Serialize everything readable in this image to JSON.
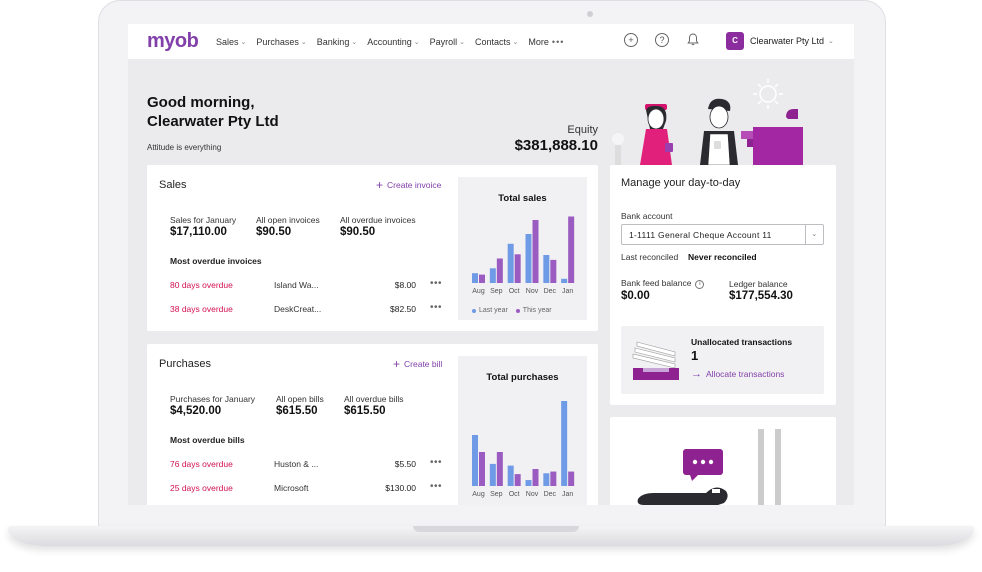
{
  "nav": {
    "logo": "myob",
    "items": [
      {
        "label": "Sales"
      },
      {
        "label": "Purchases"
      },
      {
        "label": "Banking"
      },
      {
        "label": "Accounting"
      },
      {
        "label": "Payroll"
      },
      {
        "label": "Contacts"
      },
      {
        "label": "More"
      }
    ],
    "company_initial": "C",
    "company_name": "Clearwater Pty Ltd"
  },
  "header": {
    "greeting_line1": "Good morning,",
    "greeting_line2": "Clearwater Pty Ltd",
    "tagline": "Attitude is everything",
    "equity_label": "Equity",
    "equity_value": "$381,888.10"
  },
  "sales": {
    "title": "Sales",
    "action": "Create invoice",
    "stats": [
      {
        "label": "Sales for January",
        "value": "$17,110.00"
      },
      {
        "label": "All open invoices",
        "value": "$90.50"
      },
      {
        "label": "All overdue invoices",
        "value": "$90.50"
      }
    ],
    "overdue_title": "Most overdue invoices",
    "overdue": [
      {
        "status": "80 days overdue",
        "customer": "Island Wa...",
        "amount": "$8.00"
      },
      {
        "status": "38 days overdue",
        "customer": "DeskCreat...",
        "amount": "$82.50"
      }
    ]
  },
  "purchases": {
    "title": "Purchases",
    "action": "Create bill",
    "stats": [
      {
        "label": "Purchases for January",
        "value": "$4,520.00"
      },
      {
        "label": "All open bills",
        "value": "$615.50"
      },
      {
        "label": "All overdue bills",
        "value": "$615.50"
      }
    ],
    "overdue_title": "Most overdue bills",
    "overdue": [
      {
        "status": "76 days overdue",
        "customer": "Huston & ...",
        "amount": "$5.50"
      },
      {
        "status": "25 days overdue",
        "customer": "Microsoft",
        "amount": "$130.00"
      }
    ]
  },
  "chart_data": [
    {
      "type": "bar",
      "title": "Total sales",
      "categories": [
        "Aug",
        "Sep",
        "Oct",
        "Nov",
        "Dec",
        "Jan"
      ],
      "series": [
        {
          "name": "Last year",
          "color": "#6f9ae6",
          "values": [
            14,
            21,
            56,
            70,
            40,
            6
          ]
        },
        {
          "name": "This year",
          "color": "#9a5cc0",
          "values": [
            12,
            35,
            41,
            90,
            33,
            95
          ]
        }
      ],
      "ylim": [
        0,
        100
      ],
      "legend": "bottom"
    },
    {
      "type": "bar",
      "title": "Total purchases",
      "categories": [
        "Aug",
        "Sep",
        "Oct",
        "Nov",
        "Dec",
        "Jan"
      ],
      "series": [
        {
          "color": "#6f9ae6",
          "values": [
            60,
            26,
            24,
            7,
            15,
            100
          ]
        },
        {
          "color": "#9a5cc0",
          "values": [
            40,
            40,
            14,
            20,
            17,
            17
          ]
        }
      ],
      "ylim": [
        0,
        100
      ]
    }
  ],
  "day_to_day": {
    "title": "Manage your day-to-day",
    "bank_account_label": "Bank account",
    "bank_account_value": "1-1111 General Cheque Account 11",
    "last_reconciled_label": "Last reconciled",
    "last_reconciled_value": "Never reconciled",
    "bank_feed_label": "Bank feed balance",
    "bank_feed_value": "$0.00",
    "ledger_label": "Ledger balance",
    "ledger_value": "$177,554.30",
    "unallocated_label": "Unallocated transactions",
    "unallocated_count": "1",
    "allocate_link": "Allocate transactions"
  },
  "colors": {
    "brand": "#8241aa",
    "overdue": "#d0124f",
    "last_year": "#6f9ae6",
    "this_year": "#9a5cc0"
  }
}
